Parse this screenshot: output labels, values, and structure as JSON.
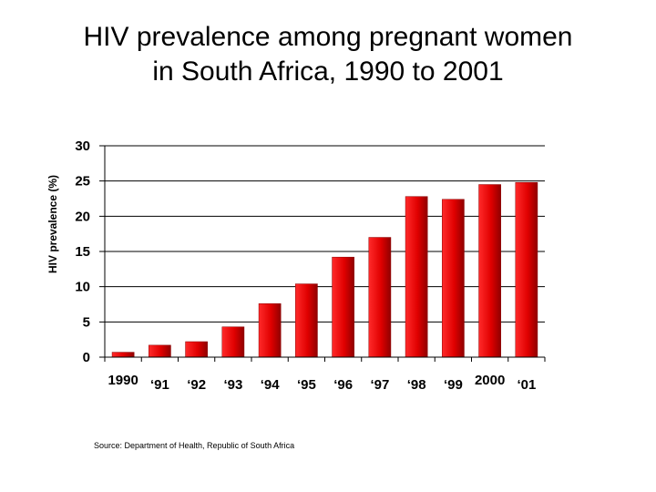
{
  "title_line1": "HIV prevalence among pregnant women",
  "title_line2": "in South Africa, 1990 to 2001",
  "source": "Source:  Department of Health, Republic of South Africa",
  "colors": {
    "bar": "#e00000",
    "bar_dark": "#8a0000",
    "grid": "#000000"
  },
  "chart_data": {
    "type": "bar",
    "title": "HIV prevalence among pregnant women in South Africa, 1990 to 2001",
    "ylabel": "HIV prevalence (%)",
    "xlabel": "",
    "categories": [
      "1990",
      "‘91",
      "‘92",
      "‘93",
      "‘94",
      "‘95",
      "‘96",
      "‘97",
      "‘98",
      "‘99",
      "2000",
      "‘01"
    ],
    "values": [
      0.7,
      1.7,
      2.2,
      4.3,
      7.6,
      10.4,
      14.2,
      17.0,
      22.8,
      22.4,
      24.5,
      24.8
    ],
    "ylim": [
      0,
      30
    ],
    "yticks": [
      "0",
      "5",
      "10",
      "15",
      "20",
      "25",
      "30"
    ],
    "grid": true,
    "legend": "none"
  }
}
